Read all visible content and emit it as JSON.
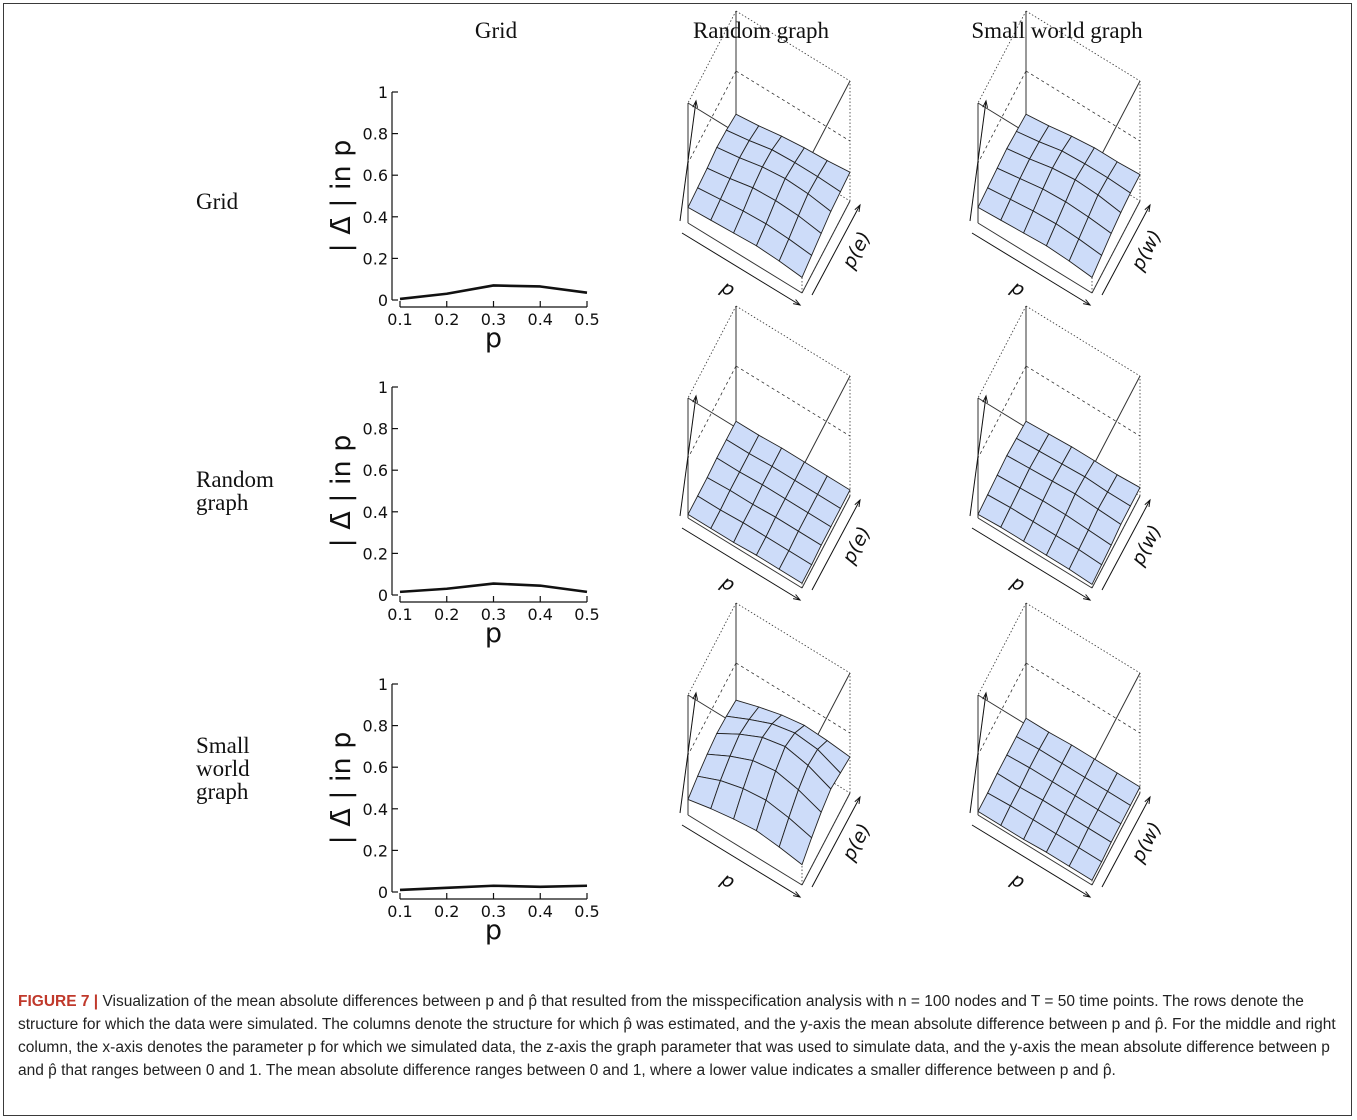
{
  "column_titles": [
    "Grid",
    "Random graph",
    "Small world graph"
  ],
  "row_labels": [
    [
      "Grid"
    ],
    [
      "Random",
      "graph"
    ],
    [
      "Small",
      "world",
      "graph"
    ]
  ],
  "colors": {
    "surface": "#cddcf9",
    "line": "#111111"
  },
  "caption": {
    "figure_label": "FIGURE 7 |",
    "text": " Visualization of the mean absolute differences between p and p̂ that resulted from the misspecification analysis with n = 100 nodes and T = 50 time points. The rows denote the structure for which the data were simulated. The columns denote the structure for which p̂ was estimated, and the y-axis the mean absolute difference between p and p̂. For the middle and right column, the x-axis denotes the parameter p for which we simulated data, the z-axis the graph parameter that was used to simulate data, and the y-axis the mean absolute difference between p and p̂ that ranges between 0 and 1. The mean absolute difference ranges between 0 and 1, where a lower value indicates a smaller difference between p and p̂."
  },
  "chart_data": [
    {
      "type": "line",
      "row": "Grid",
      "column": "Grid",
      "x": [
        0.1,
        0.2,
        0.3,
        0.4,
        0.5
      ],
      "y": [
        0.005,
        0.03,
        0.07,
        0.065,
        0.035
      ],
      "xlabel": "p",
      "ylabel": "| Δ̄ | in p",
      "ylim": [
        0,
        1
      ],
      "xticks": [
        "0.1",
        "0.2",
        "0.3",
        "0.4",
        "0.5"
      ],
      "yticks": [
        "0",
        "0.2",
        "0.4",
        "0.6",
        "0.8",
        "1"
      ]
    },
    {
      "type": "surface",
      "row": "Grid",
      "column": "Random graph",
      "xlabel": "p",
      "zlabel": "p(e)",
      "ylim": [
        0,
        1
      ],
      "z": [
        [
          0.13,
          0.14,
          0.15,
          0.17,
          0.16,
          0.14
        ],
        [
          0.14,
          0.16,
          0.18,
          0.2,
          0.19,
          0.16
        ],
        [
          0.15,
          0.18,
          0.22,
          0.24,
          0.23,
          0.19
        ],
        [
          0.16,
          0.19,
          0.23,
          0.26,
          0.24,
          0.21
        ],
        [
          0.15,
          0.18,
          0.22,
          0.25,
          0.24,
          0.22
        ],
        [
          0.13,
          0.16,
          0.19,
          0.22,
          0.23,
          0.24
        ]
      ]
    },
    {
      "type": "surface",
      "row": "Grid",
      "column": "Small world graph",
      "xlabel": "p",
      "zlabel": "p(w)",
      "ylim": [
        0,
        1
      ],
      "z": [
        [
          0.13,
          0.14,
          0.15,
          0.16,
          0.15,
          0.14
        ],
        [
          0.14,
          0.16,
          0.18,
          0.19,
          0.18,
          0.16
        ],
        [
          0.15,
          0.18,
          0.21,
          0.23,
          0.22,
          0.19
        ],
        [
          0.16,
          0.19,
          0.22,
          0.25,
          0.23,
          0.21
        ],
        [
          0.15,
          0.18,
          0.21,
          0.24,
          0.23,
          0.21
        ],
        [
          0.13,
          0.16,
          0.19,
          0.21,
          0.22,
          0.22
        ]
      ]
    },
    {
      "type": "line",
      "row": "Random graph",
      "column": "Grid",
      "x": [
        0.1,
        0.2,
        0.3,
        0.4,
        0.5
      ],
      "y": [
        0.015,
        0.03,
        0.055,
        0.045,
        0.015
      ],
      "xlabel": "p",
      "ylabel": "| Δ̄ | in p",
      "ylim": [
        0,
        1
      ],
      "xticks": [
        "0.1",
        "0.2",
        "0.3",
        "0.4",
        "0.5"
      ],
      "yticks": [
        "0",
        "0.2",
        "0.4",
        "0.6",
        "0.8",
        "1"
      ]
    },
    {
      "type": "surface",
      "row": "Random graph",
      "column": "Random graph",
      "xlabel": "p",
      "zlabel": "p(e)",
      "ylim": [
        0,
        1
      ],
      "z": [
        [
          0.03,
          0.03,
          0.03,
          0.04,
          0.04,
          0.04
        ],
        [
          0.03,
          0.03,
          0.04,
          0.04,
          0.04,
          0.04
        ],
        [
          0.03,
          0.04,
          0.04,
          0.05,
          0.05,
          0.05
        ],
        [
          0.04,
          0.04,
          0.05,
          0.05,
          0.05,
          0.05
        ],
        [
          0.04,
          0.04,
          0.05,
          0.05,
          0.05,
          0.05
        ],
        [
          0.04,
          0.04,
          0.05,
          0.05,
          0.05,
          0.05
        ]
      ]
    },
    {
      "type": "surface",
      "row": "Random graph",
      "column": "Small world graph",
      "xlabel": "p",
      "zlabel": "p(w)",
      "ylim": [
        0,
        1
      ],
      "z": [
        [
          0.03,
          0.04,
          0.05,
          0.06,
          0.05,
          0.04
        ],
        [
          0.04,
          0.05,
          0.06,
          0.07,
          0.06,
          0.05
        ],
        [
          0.04,
          0.05,
          0.07,
          0.08,
          0.07,
          0.06
        ],
        [
          0.04,
          0.05,
          0.07,
          0.09,
          0.08,
          0.06
        ],
        [
          0.04,
          0.05,
          0.06,
          0.08,
          0.07,
          0.06
        ],
        [
          0.03,
          0.04,
          0.05,
          0.07,
          0.07,
          0.07
        ]
      ]
    },
    {
      "type": "line",
      "row": "Small world graph",
      "column": "Grid",
      "x": [
        0.1,
        0.2,
        0.3,
        0.4,
        0.5
      ],
      "y": [
        0.01,
        0.02,
        0.03,
        0.025,
        0.03
      ],
      "xlabel": "p",
      "ylabel": "| Δ̄ | in p",
      "ylim": [
        0,
        1
      ],
      "xticks": [
        "0.1",
        "0.2",
        "0.3",
        "0.4",
        "0.5"
      ],
      "yticks": [
        "0",
        "0.2",
        "0.4",
        "0.6",
        "0.8",
        "1"
      ]
    },
    {
      "type": "surface",
      "row": "Small world graph",
      "column": "Random graph",
      "xlabel": "p",
      "zlabel": "p(e)",
      "ylim": [
        0,
        1
      ],
      "z": [
        [
          0.13,
          0.17,
          0.2,
          0.22,
          0.21,
          0.19
        ],
        [
          0.17,
          0.25,
          0.3,
          0.33,
          0.3,
          0.25
        ],
        [
          0.2,
          0.3,
          0.38,
          0.42,
          0.38,
          0.3
        ],
        [
          0.22,
          0.32,
          0.41,
          0.46,
          0.42,
          0.33
        ],
        [
          0.2,
          0.29,
          0.37,
          0.42,
          0.4,
          0.32
        ],
        [
          0.17,
          0.24,
          0.3,
          0.34,
          0.32,
          0.3
        ]
      ]
    },
    {
      "type": "surface",
      "row": "Small world graph",
      "column": "Small world graph",
      "xlabel": "p",
      "zlabel": "p(w)",
      "ylim": [
        0,
        1
      ],
      "z": [
        [
          0.03,
          0.03,
          0.04,
          0.04,
          0.04,
          0.04
        ],
        [
          0.03,
          0.04,
          0.04,
          0.05,
          0.05,
          0.04
        ],
        [
          0.03,
          0.04,
          0.05,
          0.05,
          0.05,
          0.05
        ],
        [
          0.04,
          0.04,
          0.05,
          0.05,
          0.05,
          0.05
        ],
        [
          0.04,
          0.04,
          0.05,
          0.05,
          0.05,
          0.05
        ],
        [
          0.04,
          0.04,
          0.05,
          0.05,
          0.05,
          0.05
        ]
      ]
    }
  ]
}
